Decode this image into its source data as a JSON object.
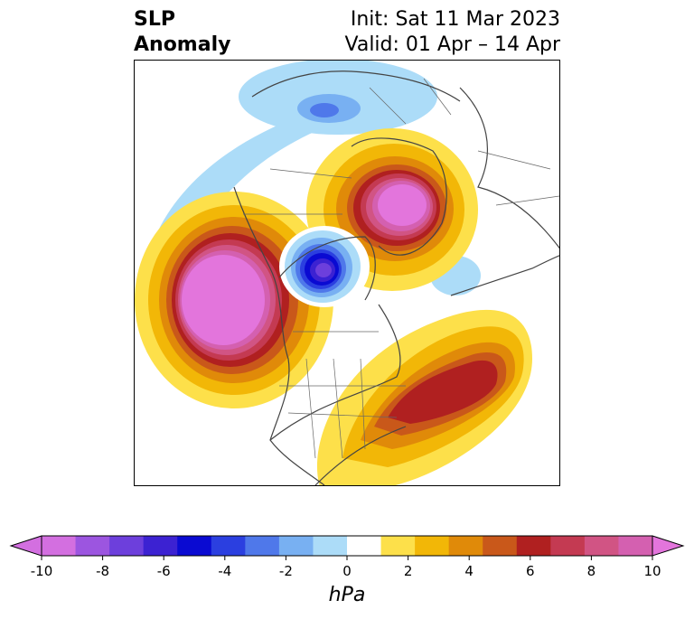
{
  "title": {
    "left_line1": "SLP",
    "left_line2": "Anomaly",
    "right_line1": "Init: Sat 11 Mar 2023",
    "right_line2": "Valid: 01 Apr – 14 Apr"
  },
  "colorbar": {
    "unit": "hPa",
    "ticks": [
      "-10",
      "-8",
      "-6",
      "-4",
      "-2",
      "0",
      "2",
      "4",
      "6",
      "8",
      "10"
    ],
    "colors": [
      "#d36fe0",
      "#9c55e0",
      "#6d3fdc",
      "#3c22d2",
      "#0a0ad2",
      "#2b3fe0",
      "#4f78ea",
      "#78b0f2",
      "#acdcf8",
      "#ffffff",
      "#fde04a",
      "#f2b707",
      "#e08a09",
      "#c9581a",
      "#b02020",
      "#c43a52",
      "#d15484",
      "#d460b0"
    ],
    "range": [
      -10,
      10
    ],
    "extend": "both"
  },
  "map": {
    "projection": "north-polar-stereographic",
    "field": "SLP anomaly",
    "features": [
      {
        "name": "positive anomaly over Greenland / Arctic",
        "peak": 10
      },
      {
        "name": "positive anomaly over northeast Pacific",
        "peak": 10
      },
      {
        "name": "positive anomaly over western North Atlantic",
        "peak": 6
      },
      {
        "name": "negative anomaly over Hudson Bay / northern Canada",
        "peak": -6
      },
      {
        "name": "negative anomaly over Siberia",
        "peak": -4
      },
      {
        "name": "weak negative arc over North Pacific",
        "peak": -2
      }
    ]
  }
}
